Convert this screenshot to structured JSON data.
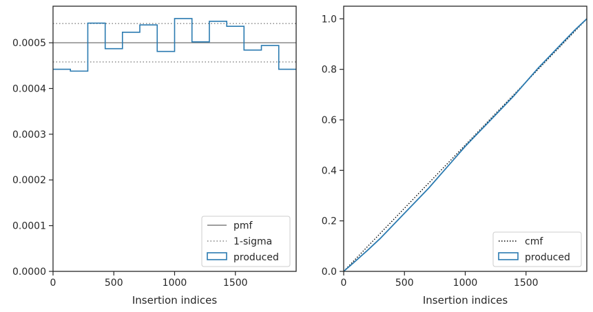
{
  "chart_data": [
    {
      "type": "histogram-step",
      "xlabel": "Insertion indices",
      "ylabel": "",
      "xlim": [
        0,
        2000
      ],
      "ylim": [
        0,
        0.00058
      ],
      "xticks": [
        0,
        500,
        1000,
        1500
      ],
      "xtick_labels": [
        "0",
        "500",
        "1000",
        "1500"
      ],
      "yticks": [
        0,
        0.0001,
        0.0002,
        0.0003,
        0.0004,
        0.0005
      ],
      "ytick_labels": [
        "0.0000",
        "0.0001",
        "0.0002",
        "0.0003",
        "0.0004",
        "0.0005"
      ],
      "bin_edges": [
        0,
        143,
        286,
        429,
        571,
        714,
        857,
        1000,
        1143,
        1286,
        1429,
        1571,
        1714,
        1857,
        2000
      ],
      "values": [
        0.000442,
        0.000438,
        0.000543,
        0.000487,
        0.000523,
        0.000539,
        0.000481,
        0.000553,
        0.000502,
        0.000547,
        0.000536,
        0.000484,
        0.000494,
        0.000442
      ],
      "pmf": 0.0005,
      "sigma_band": [
        0.000458,
        0.000542
      ],
      "legend": {
        "position": "bottom-right",
        "entries": [
          "pmf",
          "1-sigma",
          "produced"
        ]
      },
      "grid": false,
      "colors": {
        "pmf": "#7f7f7f",
        "sigma": "#7f7f7f",
        "produced": "#2a7ab0"
      }
    },
    {
      "type": "line",
      "xlabel": "Insertion indices",
      "ylabel": "",
      "xlim": [
        0,
        2000
      ],
      "ylim": [
        0,
        1.05
      ],
      "xticks": [
        0,
        500,
        1000,
        1500
      ],
      "xtick_labels": [
        "0",
        "500",
        "1000",
        "1500"
      ],
      "yticks": [
        0,
        0.2,
        0.4,
        0.6,
        0.8,
        1.0
      ],
      "ytick_labels": [
        "0.0",
        "0.2",
        "0.4",
        "0.6",
        "0.8",
        "1.0"
      ],
      "cmf": {
        "x": [
          0,
          2000
        ],
        "y": [
          0,
          1.0
        ]
      },
      "produced": {
        "x": [
          0,
          100,
          200,
          300,
          400,
          500,
          600,
          700,
          800,
          900,
          1000,
          1100,
          1200,
          1300,
          1400,
          1500,
          1600,
          1700,
          1800,
          1900,
          2000
        ],
        "y": [
          0,
          0.042,
          0.085,
          0.13,
          0.18,
          0.23,
          0.28,
          0.33,
          0.385,
          0.44,
          0.495,
          0.545,
          0.595,
          0.645,
          0.695,
          0.75,
          0.805,
          0.855,
          0.905,
          0.955,
          1.0
        ]
      },
      "legend": {
        "position": "bottom-right",
        "entries": [
          "cmf",
          "produced"
        ]
      },
      "grid": false,
      "colors": {
        "cmf": "#000000",
        "produced": "#2a7ab0"
      }
    }
  ]
}
